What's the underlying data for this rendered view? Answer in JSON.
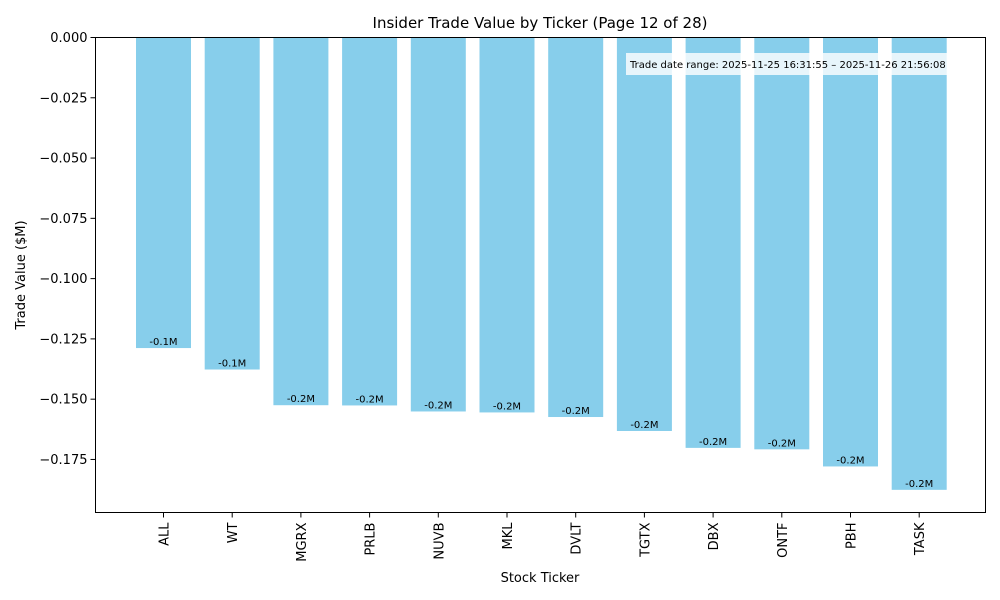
{
  "chart_data": {
    "type": "bar",
    "title": "Insider Trade Value by Ticker (Page 12 of 28)",
    "xlabel": "Stock Ticker",
    "ylabel": "Trade Value ($M)",
    "categories": [
      "ALL",
      "WT",
      "MGRX",
      "PRLB",
      "NUVB",
      "MKL",
      "DVLT",
      "TGTX",
      "DBX",
      "ONTF",
      "PBH",
      "TASK"
    ],
    "values": [
      -0.1288,
      -0.1377,
      -0.1525,
      -0.1526,
      -0.1551,
      -0.1555,
      -0.1574,
      -0.1632,
      -0.1702,
      -0.1708,
      -0.1779,
      -0.1876
    ],
    "data_labels": [
      "-0.1M",
      "-0.1M",
      "-0.2M",
      "-0.2M",
      "-0.2M",
      "-0.2M",
      "-0.2M",
      "-0.2M",
      "-0.2M",
      "-0.2M",
      "-0.2M",
      "-0.2M"
    ],
    "ylim": [
      -0.197,
      0.0
    ],
    "yticks": [
      0.0,
      -0.025,
      -0.05,
      -0.075,
      -0.1,
      -0.125,
      -0.15,
      -0.175
    ],
    "ytick_labels": [
      "0.000",
      "−0.025",
      "−0.050",
      "−0.075",
      "−0.100",
      "−0.125",
      "−0.150",
      "−0.175"
    ],
    "annotation": "Trade date range: 2025-11-25 16:31:55 – 2025-11-26 21:56:08",
    "annotation_placement": "top-right",
    "grid": false,
    "bar_color": "#87ceeb"
  }
}
